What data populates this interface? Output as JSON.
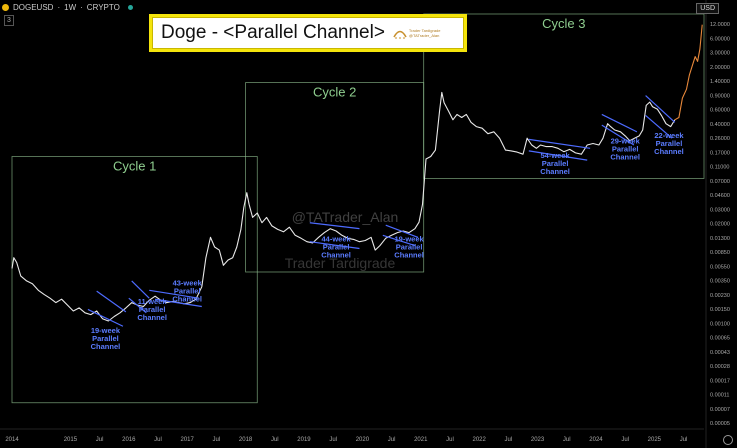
{
  "header": {
    "symbol": "DOGEUSD",
    "interval": "1W",
    "exchange": "CRYPTO",
    "separator": "·",
    "badge": "3",
    "currency": "USD"
  },
  "title": {
    "text": "Doge - <Parallel Channel>",
    "logo_line1": "Trader Tardigrade",
    "logo_line2": "@TATrader_Alan"
  },
  "watermarks": {
    "handle": "@TATrader_Alan",
    "brand": "Trader Tardigrade"
  },
  "colors": {
    "price": "#e8e8e8",
    "recent_price": "#e8883a",
    "channel": "#4d6bff",
    "cycle_box": "#8fbf8f",
    "cycle_label": "#8fce8f",
    "annotation": "#5b7cff",
    "title_border": "#f4e40c"
  },
  "chart_data": {
    "type": "line",
    "title": "Doge - <Parallel Channel>",
    "scale": "log",
    "xlim": [
      2014.0,
      2025.85
    ],
    "ylim": [
      2e-06,
      12.0
    ],
    "x_ticks": [
      {
        "x": 2014.0,
        "label": "2014"
      },
      {
        "x": 2015.0,
        "label": "2015"
      },
      {
        "x": 2015.5,
        "label": "Jul"
      },
      {
        "x": 2016.0,
        "label": "2016"
      },
      {
        "x": 2016.5,
        "label": "Jul"
      },
      {
        "x": 2017.0,
        "label": "2017"
      },
      {
        "x": 2017.5,
        "label": "Jul"
      },
      {
        "x": 2018.0,
        "label": "2018"
      },
      {
        "x": 2018.5,
        "label": "Jul"
      },
      {
        "x": 2019.0,
        "label": "2019"
      },
      {
        "x": 2019.5,
        "label": "Jul"
      },
      {
        "x": 2020.0,
        "label": "2020"
      },
      {
        "x": 2020.5,
        "label": "Jul"
      },
      {
        "x": 2021.0,
        "label": "2021"
      },
      {
        "x": 2021.5,
        "label": "Jul"
      },
      {
        "x": 2022.0,
        "label": "2022"
      },
      {
        "x": 2022.5,
        "label": "Jul"
      },
      {
        "x": 2023.0,
        "label": "2023"
      },
      {
        "x": 2023.5,
        "label": "Jul"
      },
      {
        "x": 2024.0,
        "label": "2024"
      },
      {
        "x": 2024.5,
        "label": "Jul"
      },
      {
        "x": 2025.0,
        "label": "2025"
      },
      {
        "x": 2025.5,
        "label": "Jul"
      }
    ],
    "y_ticks": [
      "12.0000",
      "6.00000",
      "3.00000",
      "2.00000",
      "1.40000",
      "0.90000",
      "0.60000",
      "0.40000",
      "0.26000",
      "0.17000",
      "0.11000",
      "0.07000",
      "0.04600",
      "0.03000",
      "0.02000",
      "0.01300",
      "0.00850",
      "0.00550",
      "0.00350",
      "0.00230",
      "0.00150",
      "0.00100",
      "0.00065",
      "0.00043",
      "0.00028",
      "0.00017",
      "0.00011",
      "0.00007",
      "0.00005"
    ],
    "series": [
      {
        "values": [
          [
            2014.0,
            0.0008
          ],
          [
            2014.03,
            0.0012
          ],
          [
            2014.08,
            0.001
          ],
          [
            2014.15,
            0.0006
          ],
          [
            2014.25,
            0.0005
          ],
          [
            2014.35,
            0.00045
          ],
          [
            2014.45,
            0.00035
          ],
          [
            2014.55,
            0.0003
          ],
          [
            2014.65,
            0.00026
          ],
          [
            2014.75,
            0.00022
          ],
          [
            2014.85,
            0.00025
          ],
          [
            2014.95,
            0.0002
          ],
          [
            2015.05,
            0.00016
          ],
          [
            2015.15,
            0.00018
          ],
          [
            2015.25,
            0.00015
          ],
          [
            2015.35,
            0.00014
          ],
          [
            2015.45,
            0.00016
          ],
          [
            2015.55,
            0.00012
          ],
          [
            2015.65,
            0.00011
          ],
          [
            2015.75,
            0.00013
          ],
          [
            2015.85,
            0.00015
          ],
          [
            2015.95,
            0.00018
          ],
          [
            2016.05,
            0.00022
          ],
          [
            2016.15,
            0.0002
          ],
          [
            2016.25,
            0.00019
          ],
          [
            2016.35,
            0.00024
          ],
          [
            2016.45,
            0.00028
          ],
          [
            2016.55,
            0.00024
          ],
          [
            2016.65,
            0.00022
          ],
          [
            2016.75,
            0.00023
          ],
          [
            2016.85,
            0.00022
          ],
          [
            2016.95,
            0.00021
          ],
          [
            2017.05,
            0.00022
          ],
          [
            2017.15,
            0.00025
          ],
          [
            2017.25,
            0.0004
          ],
          [
            2017.32,
            0.0012
          ],
          [
            2017.4,
            0.0026
          ],
          [
            2017.47,
            0.0018
          ],
          [
            2017.55,
            0.0016
          ],
          [
            2017.62,
            0.0009
          ],
          [
            2017.7,
            0.0011
          ],
          [
            2017.78,
            0.0012
          ],
          [
            2017.85,
            0.0018
          ],
          [
            2017.92,
            0.0035
          ],
          [
            2017.97,
            0.008
          ],
          [
            2018.02,
            0.014
          ],
          [
            2018.06,
            0.009
          ],
          [
            2018.12,
            0.0055
          ],
          [
            2018.2,
            0.0065
          ],
          [
            2018.28,
            0.0045
          ],
          [
            2018.36,
            0.0055
          ],
          [
            2018.45,
            0.004
          ],
          [
            2018.55,
            0.0035
          ],
          [
            2018.65,
            0.0032
          ],
          [
            2018.75,
            0.0038
          ],
          [
            2018.85,
            0.0028
          ],
          [
            2018.95,
            0.0025
          ],
          [
            2019.05,
            0.0022
          ],
          [
            2019.15,
            0.0021
          ],
          [
            2019.25,
            0.0026
          ],
          [
            2019.35,
            0.0031
          ],
          [
            2019.45,
            0.0036
          ],
          [
            2019.55,
            0.0033
          ],
          [
            2019.65,
            0.0028
          ],
          [
            2019.75,
            0.0025
          ],
          [
            2019.85,
            0.0024
          ],
          [
            2019.95,
            0.0022
          ],
          [
            2020.05,
            0.0023
          ],
          [
            2020.15,
            0.0026
          ],
          [
            2020.22,
            0.0016
          ],
          [
            2020.3,
            0.0019
          ],
          [
            2020.4,
            0.0025
          ],
          [
            2020.5,
            0.0028
          ],
          [
            2020.6,
            0.0031
          ],
          [
            2020.7,
            0.0033
          ],
          [
            2020.8,
            0.0031
          ],
          [
            2020.9,
            0.0036
          ],
          [
            2020.97,
            0.0046
          ],
          [
            2021.03,
            0.009
          ],
          [
            2021.09,
            0.05
          ],
          [
            2021.17,
            0.055
          ],
          [
            2021.25,
            0.07
          ],
          [
            2021.32,
            0.3
          ],
          [
            2021.36,
            0.62
          ],
          [
            2021.4,
            0.42
          ],
          [
            2021.48,
            0.3
          ],
          [
            2021.55,
            0.22
          ],
          [
            2021.62,
            0.27
          ],
          [
            2021.7,
            0.24
          ],
          [
            2021.78,
            0.27
          ],
          [
            2021.86,
            0.2
          ],
          [
            2021.95,
            0.17
          ],
          [
            2022.05,
            0.16
          ],
          [
            2022.15,
            0.13
          ],
          [
            2022.25,
            0.14
          ],
          [
            2022.35,
            0.11
          ],
          [
            2022.45,
            0.07
          ],
          [
            2022.55,
            0.068
          ],
          [
            2022.65,
            0.065
          ],
          [
            2022.75,
            0.06
          ],
          [
            2022.82,
            0.11
          ],
          [
            2022.9,
            0.085
          ],
          [
            2022.98,
            0.075
          ],
          [
            2023.05,
            0.085
          ],
          [
            2023.15,
            0.08
          ],
          [
            2023.25,
            0.08
          ],
          [
            2023.35,
            0.075
          ],
          [
            2023.45,
            0.066
          ],
          [
            2023.55,
            0.072
          ],
          [
            2023.65,
            0.063
          ],
          [
            2023.75,
            0.06
          ],
          [
            2023.85,
            0.085
          ],
          [
            2023.95,
            0.09
          ],
          [
            2024.05,
            0.085
          ],
          [
            2024.12,
            0.11
          ],
          [
            2024.2,
            0.19
          ],
          [
            2024.25,
            0.17
          ],
          [
            2024.32,
            0.15
          ],
          [
            2024.42,
            0.14
          ],
          [
            2024.5,
            0.12
          ],
          [
            2024.58,
            0.1
          ],
          [
            2024.66,
            0.11
          ],
          [
            2024.74,
            0.12
          ],
          [
            2024.8,
            0.15
          ],
          [
            2024.86,
            0.38
          ],
          [
            2024.92,
            0.43
          ],
          [
            2024.97,
            0.36
          ],
          [
            2025.05,
            0.33
          ],
          [
            2025.12,
            0.26
          ],
          [
            2025.2,
            0.19
          ],
          [
            2025.28,
            0.17
          ],
          [
            2025.35,
            0.22
          ]
        ]
      },
      {
        "values": [
          [
            2025.35,
            0.22
          ],
          [
            2025.42,
            0.24
          ],
          [
            2025.48,
            0.5
          ],
          [
            2025.55,
            0.7
          ],
          [
            2025.6,
            1.2
          ],
          [
            2025.65,
            1.7
          ],
          [
            2025.7,
            2.4
          ],
          [
            2025.74,
            2.0
          ],
          [
            2025.78,
            3.2
          ],
          [
            2025.82,
            8.0
          ]
        ]
      }
    ],
    "channels": [
      {
        "weeks": 19,
        "lines": [
          [
            [
              2015.45,
              0.00034
            ],
            [
              2015.95,
              0.000155
            ]
          ],
          [
            [
              2015.3,
              0.00017
            ],
            [
              2015.9,
              9e-05
            ]
          ]
        ]
      },
      {
        "weeks": 11,
        "lines": [
          [
            [
              2016.05,
              0.0005
            ],
            [
              2016.35,
              0.00026
            ]
          ],
          [
            [
              2016.0,
              0.00026
            ],
            [
              2016.3,
              0.00015
            ]
          ]
        ]
      },
      {
        "weeks": 43,
        "lines": [
          [
            [
              2016.35,
              0.00035
            ],
            [
              2017.2,
              0.00026
            ]
          ],
          [
            [
              2016.45,
              0.00025
            ],
            [
              2017.25,
              0.00019
            ]
          ]
        ]
      },
      {
        "weeks": 44,
        "lines": [
          [
            [
              2019.1,
              0.0045
            ],
            [
              2019.95,
              0.0036
            ]
          ],
          [
            [
              2019.1,
              0.0022
            ],
            [
              2019.95,
              0.0017
            ]
          ]
        ]
      },
      {
        "weeks": 19,
        "lines": [
          [
            [
              2020.4,
              0.0041
            ],
            [
              2020.95,
              0.0026
            ]
          ],
          [
            [
              2020.35,
              0.0028
            ],
            [
              2020.9,
              0.0019
            ]
          ]
        ]
      },
      {
        "weeks": 54,
        "lines": [
          [
            [
              2022.85,
              0.105
            ],
            [
              2023.9,
              0.075
            ]
          ],
          [
            [
              2022.85,
              0.068
            ],
            [
              2023.85,
              0.048
            ]
          ]
        ]
      },
      {
        "weeks": 29,
        "lines": [
          [
            [
              2024.1,
              0.27
            ],
            [
              2024.7,
              0.14
            ]
          ],
          [
            [
              2024.1,
              0.18
            ],
            [
              2024.65,
              0.085
            ]
          ]
        ]
      },
      {
        "weeks": 22,
        "lines": [
          [
            [
              2024.85,
              0.55
            ],
            [
              2025.35,
              0.2
            ]
          ],
          [
            [
              2024.85,
              0.26
            ],
            [
              2025.3,
              0.11
            ]
          ]
        ]
      }
    ],
    "cycles": [
      {
        "label": "Cycle 1",
        "x0": 2014.0,
        "x1": 2018.2,
        "y0": 5e-06,
        "y1": 0.055
      },
      {
        "label": "Cycle 2",
        "x0": 2018.0,
        "x1": 2021.05,
        "y0": 0.0007,
        "y1": 0.9
      },
      {
        "label": "Cycle 3",
        "x0": 2021.05,
        "x1": 2025.85,
        "y0": 0.024,
        "y1": 12.0
      }
    ],
    "annotations": [
      {
        "lines": [
          "19-week",
          "Parallel",
          "Channel"
        ],
        "x": 2015.6,
        "y": 7e-05
      },
      {
        "lines": [
          "11-week",
          "Parallel",
          "Channel"
        ],
        "x": 2016.4,
        "y": 0.00021
      },
      {
        "lines": [
          "43-week",
          "Parallel",
          "Channel"
        ],
        "x": 2017.0,
        "y": 0.00042
      },
      {
        "lines": [
          "44-week",
          "Parallel",
          "Channel"
        ],
        "x": 2019.55,
        "y": 0.0022
      },
      {
        "lines": [
          "19-week",
          "Parallel",
          "Channel"
        ],
        "x": 2020.8,
        "y": 0.0022
      },
      {
        "lines": [
          "54-week",
          "Parallel",
          "Channel"
        ],
        "x": 2023.3,
        "y": 0.052
      },
      {
        "lines": [
          "29-week",
          "Parallel",
          "Channel"
        ],
        "x": 2024.5,
        "y": 0.09
      },
      {
        "lines": [
          "22-week",
          "Parallel",
          "Channel"
        ],
        "x": 2025.25,
        "y": 0.11
      }
    ]
  }
}
